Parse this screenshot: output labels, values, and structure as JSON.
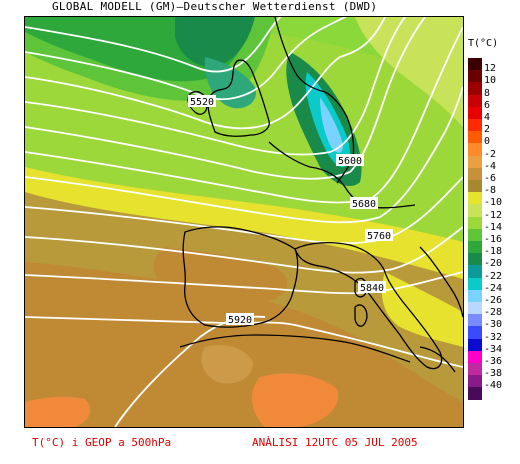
{
  "header": {
    "title": "GLOBAL MODELL (GM)—Deutscher Wetterdienst (DWD)"
  },
  "legend": {
    "title": "T(°C)",
    "ticks": [
      "12",
      "10",
      "8",
      "6",
      "4",
      "2",
      "0",
      "-2",
      "-4",
      "-6",
      "-8",
      "-10",
      "-12",
      "-14",
      "-16",
      "-18",
      "-20",
      "-22",
      "-24",
      "-26",
      "-28",
      "-30",
      "-32",
      "-34",
      "-36",
      "-38",
      "-40"
    ],
    "colors": [
      "#3a0000",
      "#6a0000",
      "#9a0000",
      "#c80000",
      "#e60000",
      "#ff2a00",
      "#ff5a00",
      "#ff8a2a",
      "#e8a040",
      "#c89038",
      "#a8882e",
      "#e6e22e",
      "#c8e25a",
      "#9cd83a",
      "#5ec43a",
      "#2ea83a",
      "#1a8a4a",
      "#0a9a9a",
      "#0acaca",
      "#7ad2ff",
      "#b8d8ff",
      "#7a8aff",
      "#3a4aff",
      "#0a0ad0",
      "#ff00c8",
      "#c02aa0",
      "#8a1a8a",
      "#4a0a5a"
    ]
  },
  "contours": {
    "labels": [
      "5520",
      "5600",
      "5680",
      "5760",
      "5840",
      "5920"
    ]
  },
  "footer": {
    "left": "T(°C) i GEOP a 500hPa",
    "right": "ANÀLISI 12UTC 05 JUL 2005"
  },
  "colors": {
    "footer_text": "#e00000",
    "contour_line": "#ffffff",
    "coastline": "#000000"
  }
}
